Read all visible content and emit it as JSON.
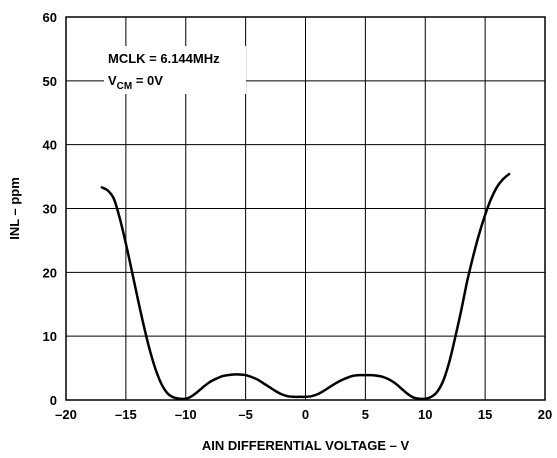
{
  "chart_data": {
    "type": "line",
    "title": "",
    "xlabel": "AIN DIFFERENTIAL VOLTAGE – V",
    "ylabel": "INL – ppm",
    "xlim": [
      -20,
      20
    ],
    "ylim": [
      0,
      60
    ],
    "x_ticks": [
      -20,
      -15,
      -10,
      -5,
      0,
      5,
      10,
      15,
      20
    ],
    "y_ticks": [
      0,
      10,
      20,
      30,
      40,
      50,
      60
    ],
    "x_tick_labels": [
      "–20",
      "–15",
      "–10",
      "–5",
      "0",
      "5",
      "10",
      "15",
      "20"
    ],
    "y_tick_labels": [
      "0",
      "10",
      "20",
      "30",
      "40",
      "50",
      "60"
    ],
    "grid": true,
    "annotations": {
      "line1": "MCLK = 6.144MHz",
      "line2_main": "V",
      "line2_sub": "CM",
      "line2_rest": " = 0V"
    },
    "series": [
      {
        "x": [
          -17,
          -16.5,
          -16,
          -15.5,
          -15,
          -14.5,
          -14,
          -13.5,
          -13,
          -12.5,
          -12,
          -11.5,
          -11,
          -10.5,
          -10,
          -9.5,
          -9,
          -8.5,
          -8,
          -7.5,
          -7,
          -6.5,
          -6,
          -5.5,
          -5,
          -4.5,
          -4,
          -3.5,
          -3,
          -2.5,
          -2,
          -1.5,
          -1,
          -0.5,
          0,
          0.5,
          1,
          1.5,
          2,
          2.5,
          3,
          3.5,
          4,
          4.5,
          5,
          5.5,
          6,
          6.5,
          7,
          7.5,
          8,
          8.5,
          9,
          9.5,
          10,
          10.5,
          11,
          11.5,
          12,
          12.5,
          13,
          13.5,
          14,
          14.5,
          15,
          15.5,
          16,
          16.5,
          17
        ],
        "y": [
          33.3,
          32.8,
          31.5,
          28.4,
          24.5,
          20.2,
          15.8,
          11.6,
          7.8,
          4.7,
          2.4,
          1.0,
          0.4,
          0.2,
          0.2,
          0.6,
          1.3,
          2.1,
          2.8,
          3.3,
          3.7,
          3.9,
          4.0,
          4.0,
          3.9,
          3.6,
          3.2,
          2.6,
          2.0,
          1.4,
          0.9,
          0.6,
          0.5,
          0.5,
          0.5,
          0.6,
          0.9,
          1.4,
          2.0,
          2.6,
          3.1,
          3.5,
          3.8,
          3.9,
          3.9,
          3.9,
          3.8,
          3.6,
          3.2,
          2.6,
          1.8,
          1.0,
          0.4,
          0.2,
          0.2,
          0.5,
          1.3,
          3.0,
          5.9,
          9.8,
          14.0,
          18.6,
          22.5,
          26.0,
          29.0,
          31.5,
          33.4,
          34.6,
          35.4
        ]
      }
    ]
  }
}
